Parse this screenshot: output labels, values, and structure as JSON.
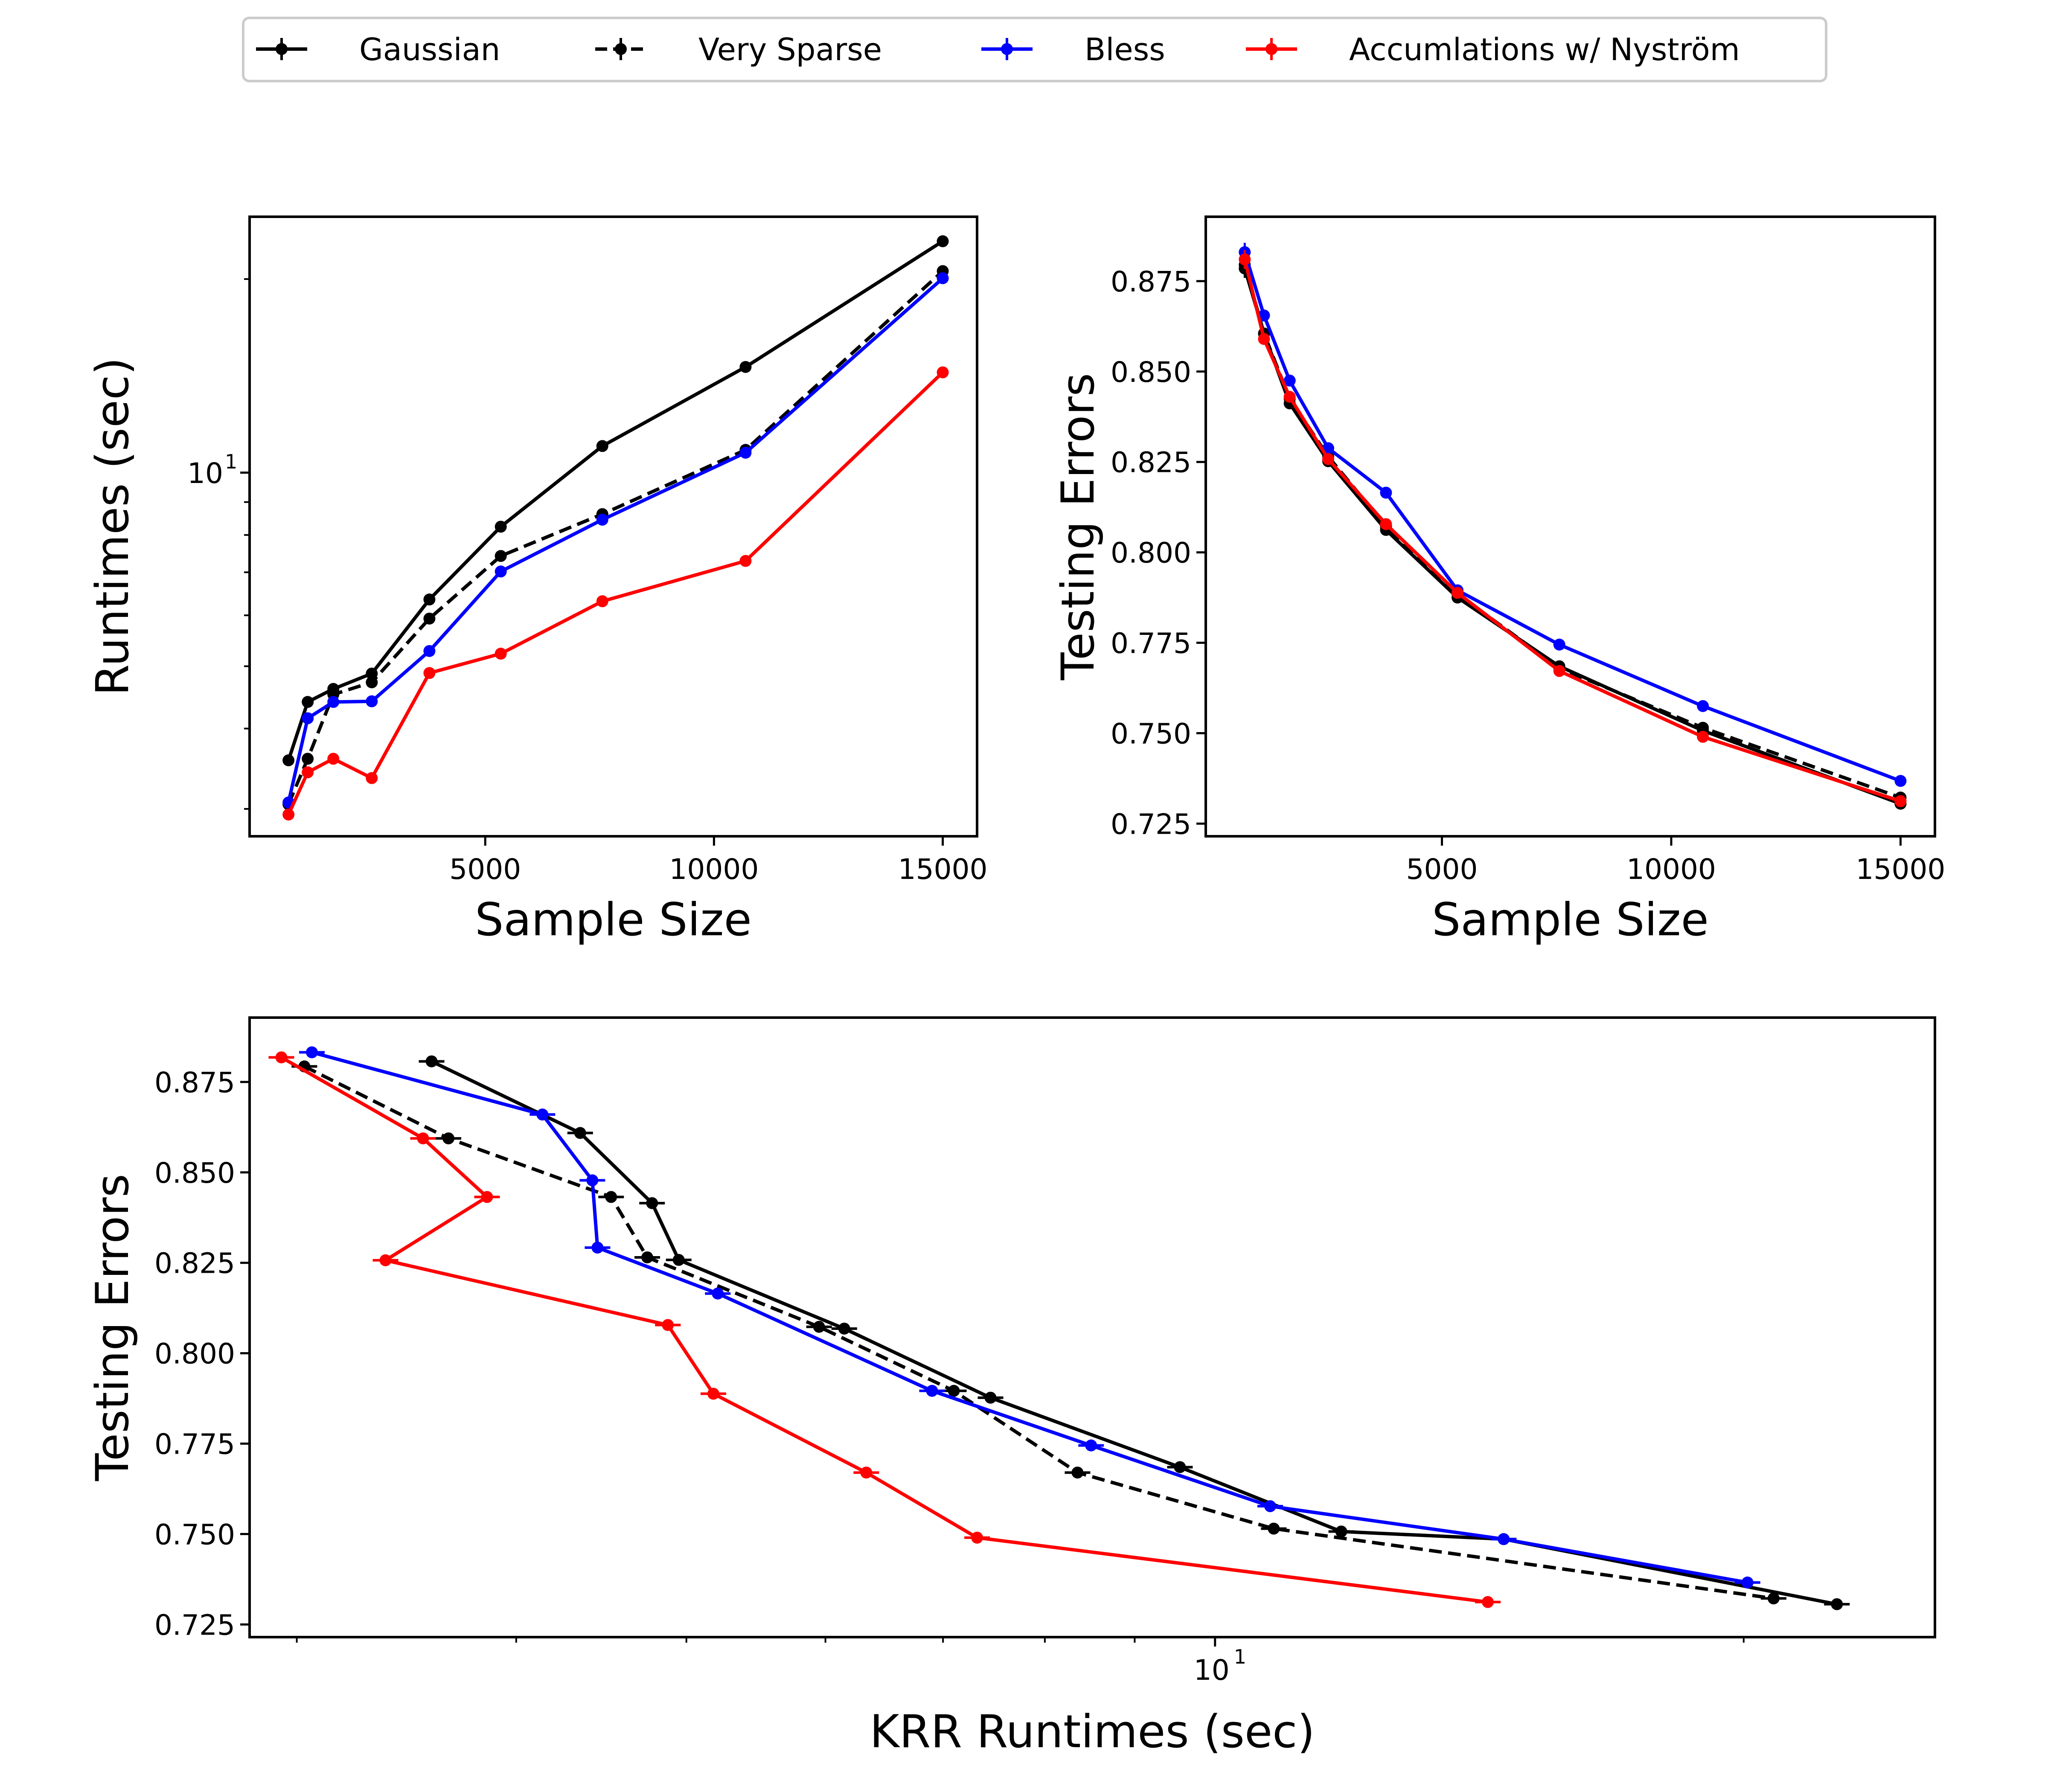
{
  "legend": {
    "items": [
      {
        "label": "Gaussian",
        "color": "#000000",
        "dashed": false
      },
      {
        "label": "Very Sparse",
        "color": "#000000",
        "dashed": true
      },
      {
        "label": "Bless",
        "color": "#0000ff",
        "dashed": false
      },
      {
        "label": "Accumlations w/ Nyström",
        "color": "#ff0000",
        "dashed": false
      }
    ]
  },
  "chart_data": [
    {
      "type": "line",
      "id": "runtime-vs-sample",
      "xlabel": "Sample Size",
      "ylabel": "Runtimes (sec)",
      "yscale": "log",
      "xlim": [
        -150,
        15750
      ],
      "ylim": [
        2.72,
        25.0
      ],
      "xticks": [
        5000,
        10000,
        15000
      ],
      "xtick_labels": [
        "5000",
        "10000",
        "15000"
      ],
      "yticks_major": [
        10
      ],
      "ytick_major_labels": [
        "10"
      ],
      "ytick_major_exponent": "1",
      "yticks_minor": [
        3,
        4,
        5,
        6,
        7,
        8,
        9,
        20
      ],
      "x": [
        700,
        1120,
        1680,
        2520,
        3780,
        5340,
        7560,
        10690,
        15000
      ],
      "series": [
        {
          "name": "Gaussian",
          "values": [
            3.57,
            4.4,
            4.61,
            4.87,
            6.35,
            8.24,
            11.0,
            14.6,
            22.9
          ]
        },
        {
          "name": "Very Sparse",
          "values": [
            3.05,
            3.59,
            4.52,
            4.72,
            5.93,
            7.42,
            8.62,
            10.85,
            20.58
          ]
        },
        {
          "name": "Bless",
          "values": [
            3.07,
            4.15,
            4.4,
            4.41,
            5.28,
            7.02,
            8.45,
            10.74,
            20.06
          ]
        },
        {
          "name": "Accumlations w/ Nyström",
          "values": [
            2.94,
            3.42,
            3.59,
            3.35,
            4.88,
            5.23,
            6.31,
            7.29,
            14.32
          ]
        }
      ]
    },
    {
      "type": "line",
      "id": "error-vs-sample",
      "xlabel": "Sample Size",
      "ylabel": "Testing Errors",
      "xlim": [
        -150,
        15750
      ],
      "ylim": [
        0.7215,
        0.8928
      ],
      "xticks": [
        5000,
        10000,
        15000
      ],
      "xtick_labels": [
        "5000",
        "10000",
        "15000"
      ],
      "yticks": [
        0.725,
        0.75,
        0.775,
        0.8,
        0.825,
        0.85,
        0.875
      ],
      "ytick_labels": [
        "0.725",
        "0.750",
        "0.775",
        "0.800",
        "0.825",
        "0.850",
        "0.875"
      ],
      "x": [
        700,
        1120,
        1680,
        2520,
        3780,
        5340,
        7560,
        10690,
        15000
      ],
      "series": [
        {
          "name": "Gaussian",
          "values": [
            0.8785,
            0.8605,
            0.8412,
            0.8252,
            0.8062,
            0.7875,
            0.7685,
            0.7507,
            0.7305
          ]
        },
        {
          "name": "Very Sparse",
          "values": [
            0.8795,
            0.8605,
            0.8425,
            0.8265,
            0.8072,
            0.7885,
            0.768,
            0.7515,
            0.7322
          ]
        },
        {
          "name": "Bless",
          "values": [
            0.883,
            0.8655,
            0.8475,
            0.8288,
            0.8165,
            0.7895,
            0.7745,
            0.7575,
            0.7368
          ]
        },
        {
          "name": "Accumlations w/ Nyström",
          "values": [
            0.881,
            0.859,
            0.843,
            0.8258,
            0.8078,
            0.7888,
            0.7672,
            0.749,
            0.7312
          ]
        }
      ]
    },
    {
      "type": "line",
      "id": "error-vs-runtime",
      "xlabel": "KRR Runtimes (sec)",
      "ylabel": "Testing Errors",
      "xscale": "log",
      "xlim": [
        2.82,
        25.7
      ],
      "ylim": [
        0.7215,
        0.8928
      ],
      "xticks_major": [
        10
      ],
      "xtick_major_labels": [
        "10"
      ],
      "xtick_major_exponent": "1",
      "xticks_minor": [
        3,
        4,
        5,
        6,
        7,
        8,
        9,
        20
      ],
      "yticks": [
        0.725,
        0.75,
        0.775,
        0.8,
        0.825,
        0.85,
        0.875
      ],
      "ytick_labels": [
        "0.725",
        "0.750",
        "0.775",
        "0.800",
        "0.825",
        "0.850",
        "0.875"
      ],
      "series": [
        {
          "name": "Gaussian",
          "x": [
            3.58,
            4.35,
            4.78,
            4.95,
            6.15,
            7.45,
            9.55,
            11.8,
            14.6,
            22.6
          ],
          "y": [
            0.8807,
            0.8609,
            0.8415,
            0.8258,
            0.8068,
            0.7877,
            0.7685,
            0.7507,
            0.7486,
            0.7306
          ]
        },
        {
          "name": "Very Sparse",
          "x": [
            3.03,
            3.66,
            4.53,
            4.75,
            5.95,
            7.1,
            8.35,
            10.8,
            20.8
          ],
          "y": [
            0.8793,
            0.8594,
            0.8432,
            0.8265,
            0.8073,
            0.7896,
            0.767,
            0.7515,
            0.7322
          ]
        },
        {
          "name": "Bless",
          "x": [
            3.06,
            4.14,
            4.42,
            4.45,
            5.21,
            6.9,
            8.5,
            10.75,
            14.6,
            20.1
          ],
          "y": [
            0.8832,
            0.866,
            0.8478,
            0.8292,
            0.8165,
            0.7896,
            0.7745,
            0.7577,
            0.7486,
            0.7366
          ]
        },
        {
          "name": "Accumlations w/ Nyström",
          "x": [
            2.94,
            3.54,
            3.85,
            3.37,
            4.88,
            5.18,
            6.33,
            7.32,
            14.3
          ],
          "y": [
            0.8818,
            0.8594,
            0.8432,
            0.8257,
            0.8078,
            0.7888,
            0.767,
            0.749,
            0.7312
          ]
        }
      ]
    }
  ]
}
